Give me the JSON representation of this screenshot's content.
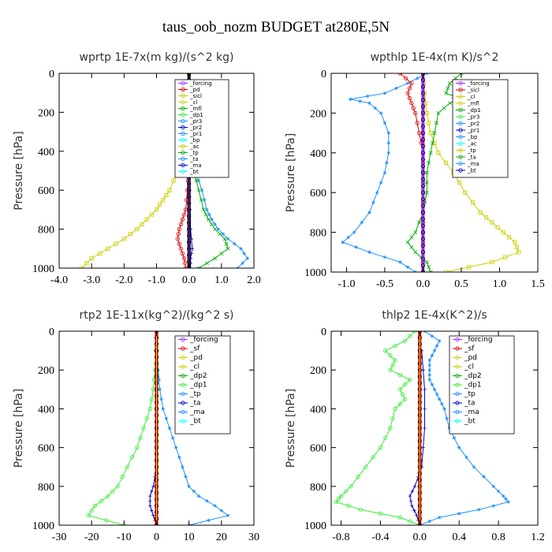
{
  "figure_title": "taus_oob_nozm  BUDGET at280E,5N",
  "chart_data": [
    {
      "type": "line",
      "title": "wprtp  1E-7x(m kg)/(s^2 kg)",
      "ylabel": "Pressure [hPa]",
      "xlim": [
        -4.0,
        2.0
      ],
      "ylim": [
        1000,
        0
      ],
      "xticks": [
        "-4.0",
        "-3.0",
        "-2.0",
        "-1.0",
        "0.0",
        "1.0",
        "2.0"
      ],
      "xtick_values": [
        -4.0,
        -3.0,
        -2.0,
        -1.0,
        0.0,
        1.0,
        2.0
      ],
      "yticks": [
        "0",
        "200",
        "400",
        "600",
        "800",
        "1000"
      ],
      "ytick_values": [
        0,
        200,
        400,
        600,
        800,
        1000
      ],
      "legend_items": [
        "_forcing",
        "_pd",
        "_sicl",
        "_cl",
        "_mfl",
        "_dp1",
        "_pr3",
        "_pr2",
        "_pr1",
        "_bp",
        "_ac",
        "_tp",
        "_ta",
        "_ma",
        "_bt"
      ],
      "series": [
        {
          "color": "#cdcd00",
          "marker": "square",
          "y": [
            0,
            100,
            200,
            300,
            400,
            500,
            600,
            650,
            700,
            750,
            800,
            850,
            900,
            950,
            1000
          ],
          "x": [
            0,
            0,
            -0.05,
            -0.1,
            -0.2,
            -0.35,
            -0.6,
            -0.8,
            -1.0,
            -1.3,
            -1.6,
            -2.0,
            -2.5,
            -3.0,
            -3.3
          ]
        },
        {
          "color": "#dd0000",
          "marker": "circle",
          "y": [
            0,
            100,
            200,
            300,
            400,
            500,
            600,
            700,
            750,
            800,
            850,
            900,
            950,
            1000
          ],
          "x": [
            0,
            0,
            0,
            0,
            0,
            -0.02,
            -0.05,
            -0.1,
            -0.2,
            -0.3,
            -0.35,
            -0.25,
            -0.15,
            -0.1
          ]
        },
        {
          "color": "#00aa00",
          "marker": "x",
          "y": [
            0,
            100,
            200,
            300,
            400,
            500,
            600,
            700,
            750,
            800,
            850,
            900,
            950,
            1000
          ],
          "x": [
            0,
            0,
            0,
            0,
            0.05,
            0.15,
            0.3,
            0.45,
            0.6,
            0.8,
            1.1,
            1.2,
            0.8,
            0.3
          ]
        },
        {
          "color": "#1e90ff",
          "marker": "star",
          "y": [
            0,
            100,
            200,
            300,
            400,
            500,
            600,
            700,
            750,
            800,
            850,
            900,
            950,
            1000
          ],
          "x": [
            0,
            0,
            0,
            0,
            0.05,
            0.2,
            0.4,
            0.55,
            0.7,
            0.9,
            1.2,
            1.6,
            1.8,
            1.5
          ]
        },
        {
          "color": "#0000cc",
          "marker": "plus",
          "y": [
            0,
            200,
            400,
            600,
            800,
            900,
            950,
            1000
          ],
          "x": [
            0,
            0,
            0,
            0.02,
            0.05,
            0.1,
            0.05,
            0.05
          ]
        },
        {
          "color": "#000000",
          "marker": "circle",
          "thick": true,
          "y": [
            0,
            100,
            200,
            300,
            400,
            500,
            600,
            700,
            800,
            900,
            1000
          ],
          "x": [
            0,
            0,
            0,
            0,
            0,
            0,
            0,
            0,
            0,
            0,
            0
          ]
        },
        {
          "color": "#9b30ff",
          "marker": "none",
          "y": [
            0,
            1000
          ],
          "x": [
            0,
            0
          ]
        }
      ]
    },
    {
      "type": "line",
      "title": "wpthlp  1E-4x(m K)/s^2",
      "ylabel": "Pressure [hPa]",
      "xlim": [
        -1.2,
        1.5
      ],
      "ylim": [
        1000,
        0
      ],
      "xticks": [
        "-1.0",
        "-0.5",
        "0.0",
        "0.5",
        "1.0",
        "1.5"
      ],
      "xtick_values": [
        -1.0,
        -0.5,
        0.0,
        0.5,
        1.0,
        1.5
      ],
      "yticks": [
        "0",
        "200",
        "400",
        "600",
        "800",
        "1000"
      ],
      "ytick_values": [
        0,
        200,
        400,
        600,
        800,
        1000
      ],
      "legend_items": [
        "_forcing",
        "_sicl",
        "_cl",
        "_mfl",
        "_dp1",
        "_pr3",
        "_pr2",
        "_pr1",
        "_bp",
        "_ac",
        "_tp",
        "_ta",
        "_ma",
        "_bt"
      ],
      "series": [
        {
          "color": "#1e90ff",
          "marker": "star",
          "y": [
            0,
            50,
            100,
            130,
            150,
            200,
            300,
            400,
            500,
            600,
            700,
            800,
            850,
            900,
            950,
            1000
          ],
          "x": [
            0.05,
            -0.2,
            -0.5,
            -0.95,
            -0.7,
            -0.55,
            -0.45,
            -0.45,
            -0.5,
            -0.6,
            -0.7,
            -0.9,
            -1.05,
            -0.7,
            -0.3,
            -0.1
          ]
        },
        {
          "color": "#cdcd00",
          "marker": "square",
          "y": [
            0,
            100,
            200,
            300,
            400,
            500,
            600,
            700,
            750,
            800,
            850,
            900,
            950,
            1000
          ],
          "x": [
            0,
            0.02,
            0.05,
            0.1,
            0.2,
            0.4,
            0.55,
            0.75,
            0.9,
            1.05,
            1.2,
            1.25,
            0.9,
            0.3
          ]
        },
        {
          "color": "#00aa00",
          "marker": "x",
          "y": [
            0,
            50,
            100,
            130,
            150,
            200,
            300,
            400,
            500,
            600,
            700,
            800,
            850,
            900,
            950,
            1000
          ],
          "x": [
            0.5,
            0.35,
            0.3,
            0.5,
            0.35,
            0.2,
            0.15,
            0.1,
            0.05,
            0.05,
            0.0,
            -0.1,
            -0.2,
            -0.1,
            0.05,
            0.1
          ]
        },
        {
          "color": "#dd0000",
          "marker": "circle",
          "y": [
            0,
            50,
            100,
            150,
            200,
            300,
            400,
            500,
            600,
            700,
            800,
            900,
            1000
          ],
          "x": [
            -0.3,
            -0.15,
            -0.2,
            -0.15,
            -0.1,
            -0.05,
            0,
            0,
            0,
            0,
            0,
            0,
            0
          ]
        },
        {
          "color": "#9b30ff",
          "marker": "circle",
          "thick": true,
          "y": [
            0,
            100,
            200,
            300,
            400,
            500,
            600,
            700,
            800,
            900,
            1000
          ],
          "x": [
            0,
            0,
            0,
            0,
            0,
            0,
            0,
            0,
            0,
            0,
            0
          ]
        }
      ]
    },
    {
      "type": "line",
      "title": "rtp2  1E-11x(kg^2)/(kg^2 s)",
      "ylabel": "Pressure [hPa]",
      "xlim": [
        -30,
        30
      ],
      "ylim": [
        1000,
        0
      ],
      "xticks": [
        "-30",
        "-20",
        "-10",
        "0",
        "10",
        "20",
        "30"
      ],
      "xtick_values": [
        -30,
        -20,
        -10,
        0,
        10,
        20,
        30
      ],
      "yticks": [
        "0",
        "200",
        "400",
        "600",
        "800",
        "1000"
      ],
      "ytick_values": [
        0,
        200,
        400,
        600,
        800,
        1000
      ],
      "legend_items": [
        "_forcing",
        "_sf",
        "_pd",
        "_cl",
        "_dp2",
        "_dp1",
        "_tp",
        "_ta",
        "_ma",
        "_bt"
      ],
      "series": [
        {
          "color": "#33ee33",
          "marker": "circle",
          "y": [
            0,
            200,
            300,
            400,
            500,
            600,
            700,
            800,
            850,
            900,
            950,
            1000
          ],
          "x": [
            0,
            -0.5,
            -1,
            -2,
            -4,
            -6,
            -9,
            -12,
            -15,
            -19,
            -21,
            -10
          ]
        },
        {
          "color": "#1e90ff",
          "marker": "star",
          "y": [
            0,
            200,
            300,
            400,
            500,
            600,
            700,
            800,
            850,
            900,
            950,
            1000
          ],
          "x": [
            0,
            0.5,
            1,
            2,
            4,
            6,
            8,
            10,
            13,
            18,
            22,
            10
          ]
        },
        {
          "color": "#0000cc",
          "marker": "plus",
          "y": [
            700,
            800,
            850,
            900,
            950,
            1000
          ],
          "x": [
            0,
            -1,
            -2,
            -2,
            -1,
            0
          ]
        },
        {
          "color": "#dd0000",
          "marker": "circle",
          "thick": true,
          "y": [
            0,
            100,
            200,
            300,
            400,
            500,
            600,
            700,
            800,
            900,
            1000
          ],
          "x": [
            0,
            0,
            0,
            0,
            0,
            0,
            0,
            0,
            0,
            0,
            0
          ]
        },
        {
          "color": "#dddd00",
          "marker": "none",
          "y": [
            0,
            1000
          ],
          "x": [
            0,
            0
          ]
        }
      ]
    },
    {
      "type": "line",
      "title": "thlp2  1E-4x(K^2)/s",
      "ylabel": "Pressure [hPa]",
      "xlim": [
        -0.9,
        1.2
      ],
      "ylim": [
        1000,
        0
      ],
      "xticks": [
        "-0.8",
        "-0.4",
        "0.0",
        "0.4",
        "0.8",
        "1.2"
      ],
      "xtick_values": [
        -0.8,
        -0.4,
        0.0,
        0.4,
        0.8,
        1.2
      ],
      "yticks": [
        "0",
        "200",
        "400",
        "600",
        "800",
        "1000"
      ],
      "ytick_values": [
        0,
        200,
        400,
        600,
        800,
        1000
      ],
      "legend_items": [
        "_forcing",
        "_sf",
        "_pd",
        "_cl",
        "_dp2",
        "_dp1",
        "_tp",
        "_ta",
        "_ma",
        "_bt"
      ],
      "series": [
        {
          "color": "#33ee33",
          "marker": "circle",
          "y": [
            0,
            50,
            100,
            150,
            200,
            250,
            300,
            350,
            400,
            500,
            600,
            700,
            800,
            850,
            880,
            920,
            960,
            1000
          ],
          "x": [
            -0.05,
            -0.15,
            -0.35,
            -0.25,
            -0.3,
            -0.1,
            -0.2,
            -0.15,
            -0.25,
            -0.3,
            -0.4,
            -0.55,
            -0.7,
            -0.8,
            -0.85,
            -0.6,
            -0.2,
            0
          ]
        },
        {
          "color": "#1e90ff",
          "marker": "star",
          "y": [
            0,
            50,
            100,
            150,
            200,
            250,
            300,
            350,
            400,
            500,
            600,
            700,
            800,
            850,
            880,
            920,
            960,
            1000
          ],
          "x": [
            0.05,
            0.2,
            0.15,
            0.1,
            0.1,
            0.1,
            0.15,
            0.2,
            0.25,
            0.3,
            0.4,
            0.55,
            0.75,
            0.85,
            0.9,
            0.6,
            0.2,
            0
          ]
        },
        {
          "color": "#0000cc",
          "marker": "plus",
          "y": [
            100,
            300,
            500,
            700,
            800,
            850,
            900,
            950,
            1000
          ],
          "x": [
            0.02,
            0.05,
            0.05,
            0.02,
            -0.05,
            -0.1,
            -0.08,
            -0.03,
            0
          ]
        },
        {
          "color": "#dd0000",
          "marker": "circle",
          "thick": true,
          "y": [
            0,
            100,
            200,
            300,
            400,
            500,
            600,
            700,
            800,
            900,
            1000
          ],
          "x": [
            0,
            0,
            0,
            0,
            0,
            0,
            0,
            0,
            0,
            0,
            0
          ]
        },
        {
          "color": "#dddd00",
          "marker": "none",
          "y": [
            0,
            1000
          ],
          "x": [
            0,
            0
          ]
        }
      ]
    }
  ]
}
